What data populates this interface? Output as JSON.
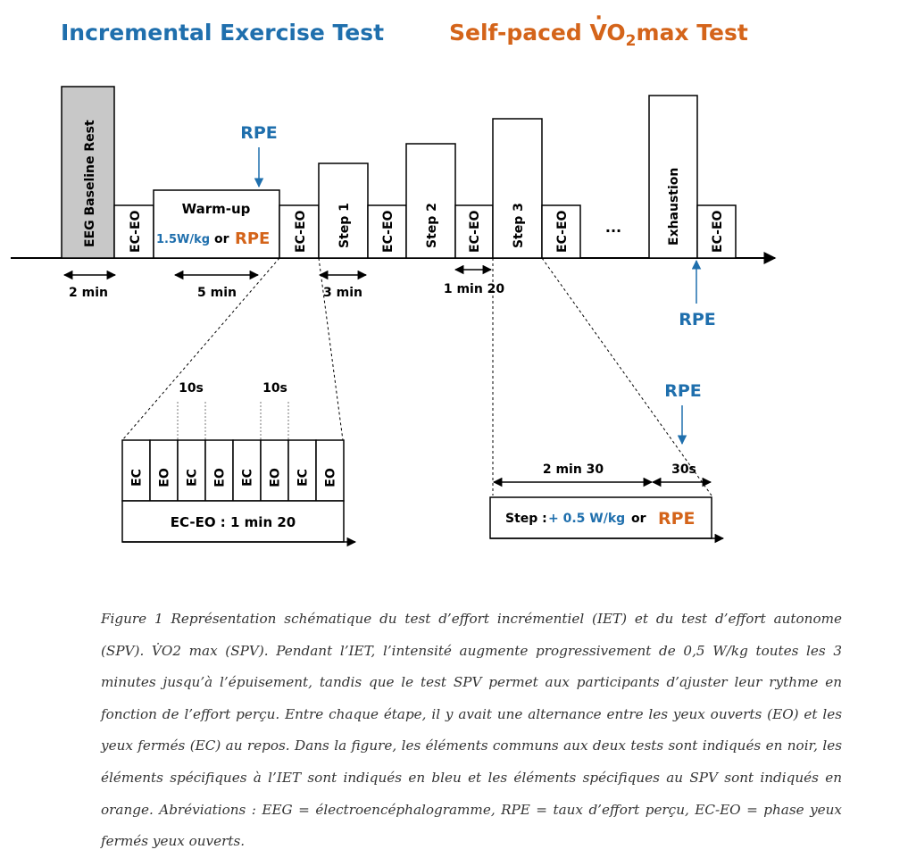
{
  "titles": {
    "iet": "Incremental Exercise Test",
    "spv_prefix": "Self-paced ",
    "spv_v": "V",
    "spv_o": "O",
    "spv_sub": "2",
    "spv_suffix": "max Test"
  },
  "colors": {
    "blue": "#1f6fad",
    "orange": "#d4641a",
    "black": "#000000",
    "gray_fill": "#c8c8c8"
  },
  "timeline": {
    "baseline": "EEG Baseline Rest",
    "ec_eo": "EC-EO",
    "warmup": "Warm-up",
    "warmup_power": "1.5W/kg",
    "or": "or",
    "rpe": "RPE",
    "steps": [
      "Step 1",
      "Step 2",
      "Step 3"
    ],
    "ellipsis": "...",
    "exhaustion": "Exhaustion",
    "rpe_top": "RPE",
    "rpe_bottom": "RPE",
    "dur_baseline": "2 min",
    "dur_warmup": "5 min",
    "dur_step": "3 min",
    "dur_eceo": "1 min 20"
  },
  "detail_ec_eo": {
    "cells": [
      "EC",
      "EO",
      "EC",
      "EO",
      "EC",
      "EO",
      "EC",
      "EO"
    ],
    "interval_labels": [
      "10s",
      "10s"
    ],
    "label": "EC-EO : 1 min 20"
  },
  "detail_step": {
    "rpe": "RPE",
    "dur_main": "2 min 30",
    "dur_last": "30s",
    "step_label": "Step :",
    "step_increment": "+ 0.5 W/kg",
    "or": "or",
    "rpe_choice": "RPE"
  },
  "caption": {
    "text": "Figure 1 Représentation schématique du test d’effort incrémentiel (IET) et du test d’effort autonome (SPV). V̇O2 max (SPV). Pendant l’IET, l’intensité augmente progressivement de 0,5 W/kg toutes les 3 minutes jusqu’à l’épuisement, tandis que le test SPV permet aux participants d’ajuster leur rythme en fonction de l’effort perçu. Entre chaque étape, il y avait une alternance entre les yeux ouverts (EO) et les yeux fermés (EC) au repos. Dans la figure, les éléments communs aux deux tests sont indiqués en noir, les éléments spécifiques à l’IET sont indiqués en bleu et les éléments spécifiques au SPV sont indiqués en orange. Abréviations : EEG = électroencéphalogramme, RPE = taux d’effort perçu, EC-EO = phase yeux fermés yeux ouverts."
  }
}
